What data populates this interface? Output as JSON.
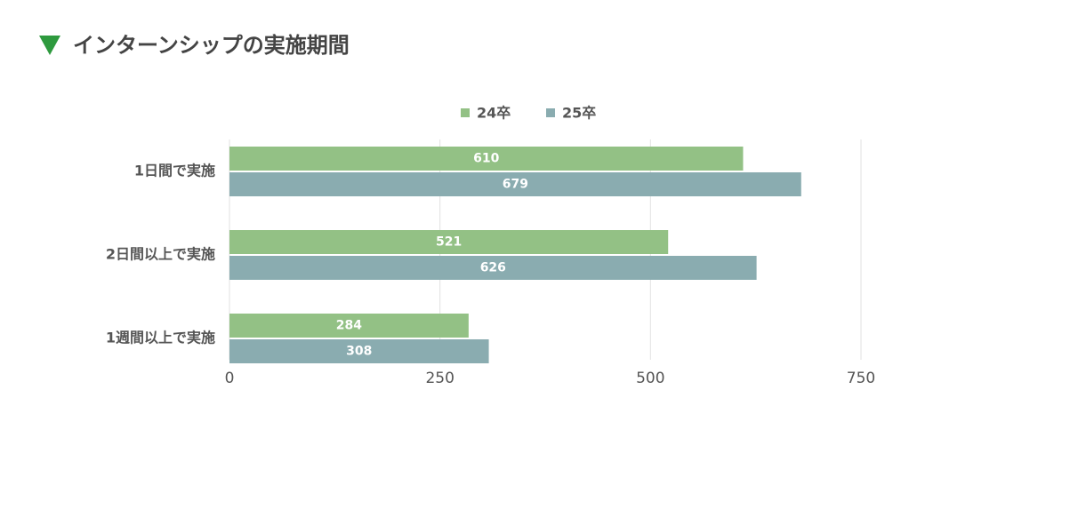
{
  "chart_data": {
    "type": "bar",
    "orientation": "horizontal",
    "title": "インターンシップの実施期間",
    "categories": [
      "1日間で実施",
      "2日間以上で実施",
      "1週間以上で実施"
    ],
    "series": [
      {
        "name": "24卒",
        "color": "#93c185",
        "values": [
          610,
          521,
          284
        ]
      },
      {
        "name": "25卒",
        "color": "#8aacb0",
        "values": [
          679,
          626,
          308
        ]
      }
    ],
    "xlim": [
      0,
      750
    ],
    "xticks": [
      0,
      250,
      500,
      750
    ],
    "grid": true,
    "legend": "top"
  }
}
